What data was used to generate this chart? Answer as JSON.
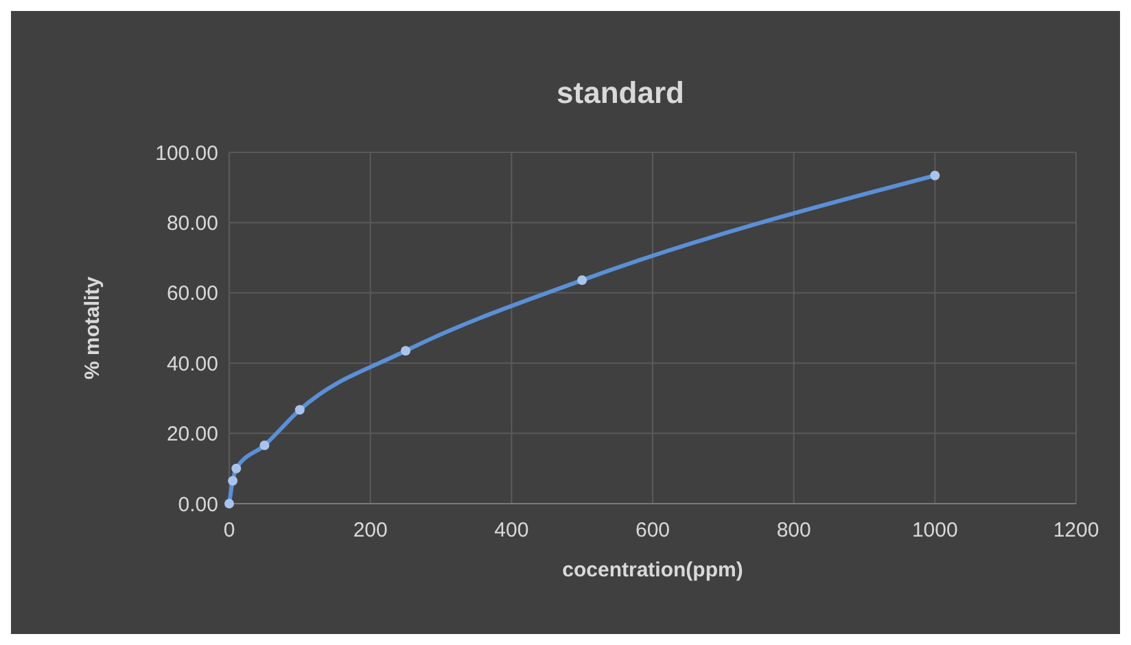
{
  "chart_data": {
    "type": "line",
    "title": "standard",
    "xlabel": "cocentration(ppm)",
    "ylabel": "% motality",
    "x": [
      0,
      5,
      10,
      50,
      100,
      250,
      500,
      1000
    ],
    "series": [
      {
        "color": "#5b8fd6",
        "values": [
          0,
          6.5,
          10,
          16.6,
          26.7,
          43.5,
          63.6,
          93.4
        ]
      }
    ],
    "xlim": [
      0,
      1200
    ],
    "xticks": [
      0,
      200,
      400,
      600,
      800,
      1000,
      1200
    ],
    "ylim": [
      0,
      100
    ],
    "yticks": [
      {
        "value": 0,
        "label": "0.00"
      },
      {
        "value": 20,
        "label": "20.00"
      },
      {
        "value": 40,
        "label": "40.00"
      },
      {
        "value": 60,
        "label": "60.00"
      },
      {
        "value": 80,
        "label": "80.00"
      },
      {
        "value": 100,
        "label": "100.00"
      }
    ],
    "grid": true,
    "marker": "circle",
    "line_style": "solid"
  }
}
